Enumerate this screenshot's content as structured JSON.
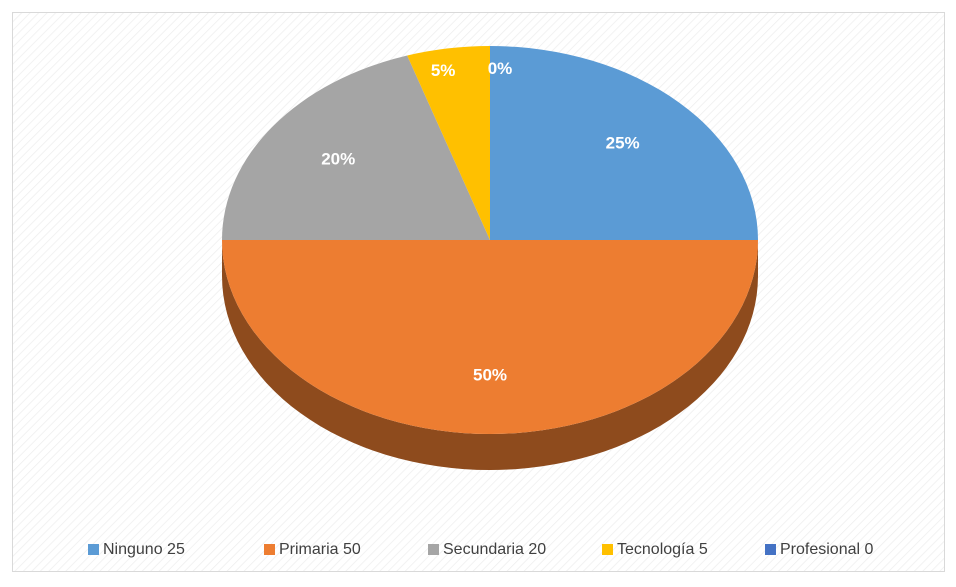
{
  "chart_data": {
    "type": "pie",
    "categories": [
      "Ninguno 25",
      "Primaria 50",
      "Secundaria 20",
      "Tecnología 5",
      "Profesional  0"
    ],
    "values": [
      25,
      50,
      20,
      5,
      0
    ],
    "value_labels": [
      "25%",
      "50%",
      "20%",
      "5%",
      "0%"
    ],
    "colors": [
      "#5b9bd5",
      "#ed7d31",
      "#a5a5a5",
      "#ffc000",
      "#4472c4"
    ],
    "legend": "bottom"
  }
}
